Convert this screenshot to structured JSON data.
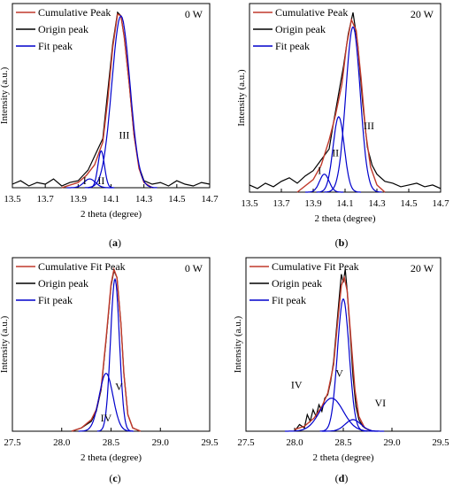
{
  "chart_data": [
    {
      "panel": "a",
      "type": "line",
      "power": "0 W",
      "xlabel": "2 theta (degree)",
      "ylabel": "Intensity (a.u.)",
      "xlim": [
        13.5,
        14.7
      ],
      "ylim": [
        0,
        1.05
      ],
      "xticks": [
        "13.5",
        "13.7",
        "13.9",
        "14.1",
        "14.3",
        "14.5",
        "14.7"
      ],
      "legend": [
        "Cumulative  Peak",
        "Origin peak",
        "Fit peak"
      ],
      "series": [
        {
          "name": "Origin peak",
          "color": "#000000",
          "x": [
            13.5,
            13.55,
            13.6,
            13.65,
            13.7,
            13.75,
            13.8,
            13.85,
            13.9,
            13.93,
            13.96,
            13.99,
            14.02,
            14.05,
            14.08,
            14.11,
            14.14,
            14.16,
            14.18,
            14.21,
            14.24,
            14.27,
            14.3,
            14.35,
            14.4,
            14.45,
            14.5,
            14.55,
            14.6,
            14.65,
            14.7
          ],
          "y": [
            0.02,
            0.04,
            0.01,
            0.03,
            0.02,
            0.05,
            0.01,
            0.03,
            0.04,
            0.07,
            0.1,
            0.16,
            0.22,
            0.28,
            0.55,
            0.82,
            1.0,
            0.98,
            0.86,
            0.6,
            0.3,
            0.12,
            0.04,
            0.02,
            0.03,
            0.01,
            0.04,
            0.02,
            0.01,
            0.03,
            0.02
          ]
        },
        {
          "name": "Cumulative  Peak",
          "color": "#c0392b",
          "x": [
            13.8,
            13.9,
            13.95,
            14.0,
            14.05,
            14.08,
            14.11,
            14.14,
            14.16,
            14.18,
            14.21,
            14.24,
            14.27,
            14.3,
            14.35
          ],
          "y": [
            0.0,
            0.03,
            0.07,
            0.13,
            0.26,
            0.5,
            0.8,
            0.99,
            0.98,
            0.86,
            0.6,
            0.3,
            0.11,
            0.03,
            0.0
          ]
        },
        {
          "name": "Fit peak I",
          "color": "#0000cc",
          "peak": {
            "center": 13.97,
            "height": 0.05,
            "sigma": 0.035
          }
        },
        {
          "name": "Fit peak II",
          "color": "#0000cc",
          "peak": {
            "center": 14.04,
            "height": 0.21,
            "sigma": 0.02
          }
        },
        {
          "name": "Fit peak III",
          "color": "#0000cc",
          "peak": {
            "center": 14.16,
            "height": 0.98,
            "sigma": 0.055
          }
        }
      ],
      "annotations": [
        {
          "text": "I",
          "x": 13.94,
          "y": 0.02
        },
        {
          "text": "II",
          "x": 14.04,
          "y": 0.02
        },
        {
          "text": "III",
          "x": 14.18,
          "y": 0.28
        }
      ]
    },
    {
      "panel": "b",
      "type": "line",
      "power": "20 W",
      "xlabel": "2 theta (degree)",
      "ylabel": "Intensity (a.u.)",
      "xlim": [
        13.5,
        14.7
      ],
      "ylim": [
        0,
        1.05
      ],
      "xticks": [
        "13.5",
        "13.7",
        "13.9",
        "14.1",
        "14.3",
        "14.5",
        "14.7"
      ],
      "legend": [
        "Cumulative  Peak",
        "Origin peak",
        "Fit peak"
      ],
      "series": [
        {
          "name": "Origin peak",
          "color": "#000000",
          "x": [
            13.5,
            13.55,
            13.6,
            13.65,
            13.7,
            13.75,
            13.8,
            13.85,
            13.9,
            13.95,
            14.0,
            14.03,
            14.06,
            14.09,
            14.12,
            14.15,
            14.18,
            14.21,
            14.24,
            14.27,
            14.3,
            14.35,
            14.4,
            14.45,
            14.5,
            14.55,
            14.6,
            14.65,
            14.7
          ],
          "y": [
            0.04,
            0.02,
            0.05,
            0.03,
            0.06,
            0.08,
            0.05,
            0.09,
            0.12,
            0.18,
            0.24,
            0.4,
            0.55,
            0.7,
            0.88,
            1.0,
            0.82,
            0.5,
            0.25,
            0.15,
            0.1,
            0.06,
            0.05,
            0.03,
            0.04,
            0.05,
            0.03,
            0.04,
            0.02
          ]
        },
        {
          "name": "Cumulative  Peak",
          "color": "#c0392b",
          "x": [
            13.8,
            13.9,
            13.95,
            14.0,
            14.04,
            14.08,
            14.11,
            14.14,
            14.17,
            14.2,
            14.23,
            14.26,
            14.3,
            14.35
          ],
          "y": [
            0.0,
            0.07,
            0.15,
            0.29,
            0.43,
            0.6,
            0.82,
            0.96,
            0.9,
            0.64,
            0.33,
            0.14,
            0.04,
            0.0
          ]
        },
        {
          "name": "Fit peak I",
          "color": "#0000cc",
          "peak": {
            "center": 13.97,
            "height": 0.1,
            "sigma": 0.03
          }
        },
        {
          "name": "Fit peak II",
          "color": "#0000cc",
          "peak": {
            "center": 14.06,
            "height": 0.42,
            "sigma": 0.035
          }
        },
        {
          "name": "Fit peak III",
          "color": "#0000cc",
          "peak": {
            "center": 14.15,
            "height": 0.92,
            "sigma": 0.045
          }
        }
      ],
      "annotations": [
        {
          "text": "I",
          "x": 13.94,
          "y": 0.1
        },
        {
          "text": "II",
          "x": 14.04,
          "y": 0.2
        },
        {
          "text": "III",
          "x": 14.25,
          "y": 0.35
        }
      ]
    },
    {
      "panel": "c",
      "type": "line",
      "power": "0 W",
      "xlabel": "2 theta (degree)",
      "ylabel": "Intensity (a.u.)",
      "xlim": [
        27.5,
        29.5
      ],
      "ylim": [
        0,
        1.05
      ],
      "xticks": [
        "27.5",
        "28.0",
        "28.5",
        "29.0",
        "29.5"
      ],
      "legend": [
        "Cumulative Fit Peak",
        "Origin peak",
        "Fit peak"
      ],
      "series": [
        {
          "name": "Origin peak",
          "color": "#000000",
          "x": [
            28.1,
            28.2,
            28.3,
            28.35,
            28.4,
            28.45,
            28.5,
            28.53,
            28.56,
            28.6,
            28.63,
            28.67,
            28.72,
            28.8
          ],
          "y": [
            0.0,
            0.02,
            0.06,
            0.12,
            0.25,
            0.55,
            0.88,
            0.97,
            0.93,
            0.65,
            0.35,
            0.1,
            0.02,
            0.0
          ]
        },
        {
          "name": "Cumulative Fit Peak",
          "color": "#c0392b",
          "x": [
            28.1,
            28.2,
            28.3,
            28.35,
            28.4,
            28.45,
            28.5,
            28.53,
            28.56,
            28.6,
            28.63,
            28.67,
            28.72,
            28.8
          ],
          "y": [
            0.0,
            0.02,
            0.07,
            0.13,
            0.26,
            0.56,
            0.89,
            0.98,
            0.93,
            0.65,
            0.35,
            0.1,
            0.02,
            0.0
          ]
        },
        {
          "name": "Fit peak IV",
          "color": "#0000cc",
          "peak": {
            "center": 28.45,
            "height": 0.35,
            "sigma": 0.07
          }
        },
        {
          "name": "Fit peak V",
          "color": "#0000cc",
          "peak": {
            "center": 28.54,
            "height": 0.92,
            "sigma": 0.045
          }
        }
      ],
      "annotations": [
        {
          "text": "V",
          "x": 28.58,
          "y": 0.25
        },
        {
          "text": "IV",
          "x": 28.45,
          "y": 0.06
        }
      ]
    },
    {
      "panel": "d",
      "type": "line",
      "power": "20 W",
      "xlabel": "2 theta (degree)",
      "ylabel": "Intensity (a.u.)",
      "xlim": [
        27.5,
        29.5
      ],
      "ylim": [
        0,
        1.05
      ],
      "xticks": [
        "27.5",
        "28.0",
        "28.5",
        "29.0",
        "29.5"
      ],
      "legend": [
        "Cumulative Fit Peak",
        "Origin peak",
        "Fit peak"
      ],
      "series": [
        {
          "name": "Origin peak",
          "color": "#000000",
          "x": [
            28.0,
            28.05,
            28.1,
            28.13,
            28.16,
            28.19,
            28.22,
            28.25,
            28.28,
            28.31,
            28.34,
            28.37,
            28.4,
            28.43,
            28.46,
            28.48,
            28.5,
            28.52,
            28.54,
            28.57,
            28.6,
            28.63,
            28.66,
            28.7,
            28.75,
            28.8
          ],
          "y": [
            0.0,
            0.04,
            0.02,
            0.1,
            0.06,
            0.13,
            0.09,
            0.16,
            0.12,
            0.2,
            0.22,
            0.3,
            0.42,
            0.62,
            0.82,
            0.95,
            0.9,
            0.98,
            0.85,
            0.6,
            0.33,
            0.15,
            0.07,
            0.03,
            0.01,
            0.0
          ]
        },
        {
          "name": "Cumulative Fit Peak",
          "color": "#c0392b",
          "x": [
            28.0,
            28.1,
            28.2,
            28.28,
            28.34,
            28.4,
            28.44,
            28.48,
            28.51,
            28.54,
            28.58,
            28.62,
            28.66,
            28.72,
            28.8
          ],
          "y": [
            0.01,
            0.03,
            0.08,
            0.15,
            0.23,
            0.4,
            0.65,
            0.88,
            0.93,
            0.85,
            0.55,
            0.25,
            0.09,
            0.02,
            0.0
          ]
        },
        {
          "name": "Fit peak IV",
          "color": "#0000cc",
          "peak": {
            "center": 28.38,
            "height": 0.2,
            "sigma": 0.12
          }
        },
        {
          "name": "Fit peak V",
          "color": "#0000cc",
          "peak": {
            "center": 28.5,
            "height": 0.8,
            "sigma": 0.06
          }
        },
        {
          "name": "Fit peak VI",
          "color": "#0000cc",
          "peak": {
            "center": 28.6,
            "height": 0.07,
            "sigma": 0.08
          }
        }
      ],
      "annotations": [
        {
          "text": "IV",
          "x": 28.02,
          "y": 0.26
        },
        {
          "text": "V",
          "x": 28.46,
          "y": 0.33
        },
        {
          "text": "VI",
          "x": 28.88,
          "y": 0.15
        }
      ]
    }
  ],
  "panel_labels": [
    "(a)",
    "(b)",
    "(c)",
    "(d)"
  ]
}
